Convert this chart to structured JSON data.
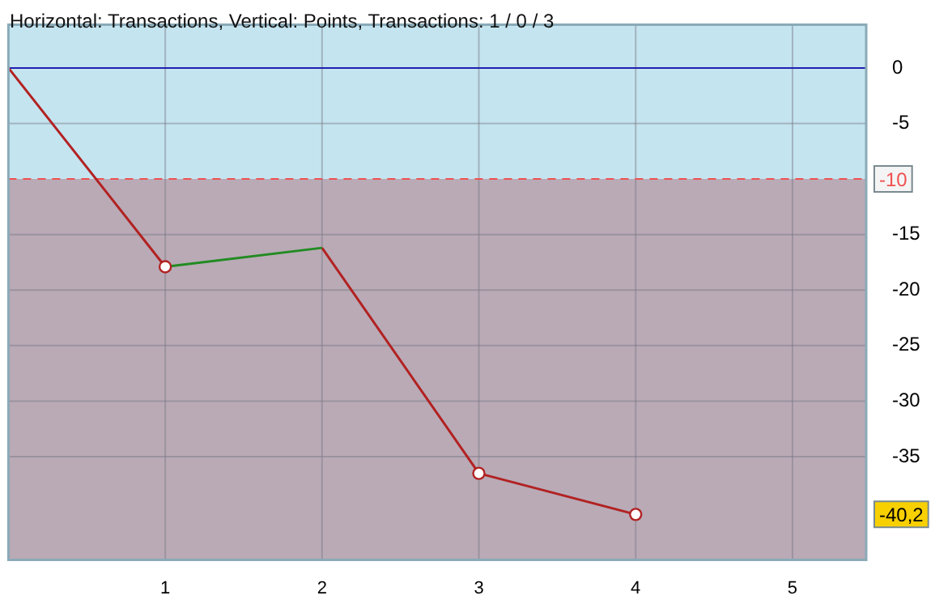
{
  "chart_data": {
    "type": "line",
    "title": "Horizontal: Transactions, Vertical: Points, Transactions: 1 / 0 / 3",
    "series": [
      {
        "color": "#b22222",
        "x": [
          0,
          1
        ],
        "values": [
          0,
          -17.9
        ],
        "marker": "none"
      },
      {
        "color": "#228b22",
        "x": [
          1,
          2
        ],
        "values": [
          -17.9,
          -16.2
        ],
        "marker": "none"
      },
      {
        "color": "#b22222",
        "x": [
          2,
          3,
          4
        ],
        "values": [
          -16.2,
          -36.5,
          -40.2
        ],
        "marker": "none"
      },
      {
        "type": "scatter",
        "color": "#b22222",
        "x": [
          1,
          3,
          4
        ],
        "values": [
          -17.9,
          -36.5,
          -40.2
        ],
        "marker": "circle"
      }
    ],
    "xlim": [
      0,
      5.47
    ],
    "xticks": [
      1,
      2,
      3,
      4,
      5
    ],
    "ylim": [
      -44.3,
      3.9
    ],
    "yticks": [
      0,
      -5,
      -15,
      -20,
      -25,
      -30,
      -35
    ],
    "ref_lines": [
      {
        "axis": "y",
        "value": 0,
        "color": "#2020b0",
        "line_style": "solid"
      },
      {
        "axis": "y",
        "value": -10,
        "label": "-10",
        "color": "#f05050",
        "line_style": "dashed"
      }
    ],
    "bands": [
      {
        "axis": "y",
        "from": -10,
        "to": 3.9,
        "color": "#c4e4f0"
      },
      {
        "axis": "y",
        "from": -44.3,
        "to": -10,
        "color": "#b9aab6"
      }
    ],
    "annotations": [
      "-40,2"
    ],
    "grid": true
  }
}
